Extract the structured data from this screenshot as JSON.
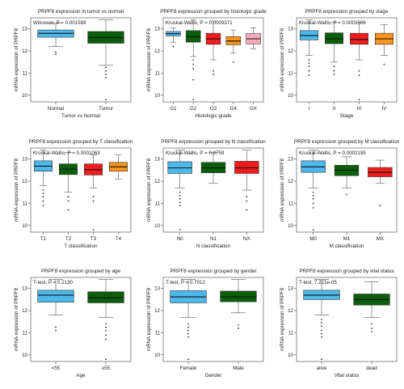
{
  "colors": {
    "light_blue": "#4db8ea",
    "dark_green": "#0b5e0b",
    "red": "#ee1c1c",
    "orange": "#f7941d",
    "pink": "#f6a9b8",
    "outlier": "#333333"
  },
  "chart_data": [
    {
      "type": "box",
      "title": "PRPF8 expression in tumor vs normal",
      "annotation": "Wilcoxon, P = 0.001599",
      "xlabel": "Tumor vs Normal",
      "ylabel": "mRNA expression of PRPF8",
      "ylim": [
        9.7,
        13.5
      ],
      "yticks": [
        10,
        11,
        12,
        13
      ],
      "categories": [
        {
          "label": "Normal",
          "color": "#4db8ea",
          "min": 12.2,
          "q1": 12.62,
          "median": 12.8,
          "q3": 12.95,
          "max": 13.25,
          "outliers": [
            11.85,
            11.95
          ]
        },
        {
          "label": "Tumor",
          "color": "#0b5e0b",
          "min": 11.35,
          "q1": 12.35,
          "median": 12.6,
          "q3": 12.88,
          "max": 13.4,
          "outliers": [
            11.25,
            11.1,
            10.95,
            10.8,
            9.8
          ]
        }
      ]
    },
    {
      "type": "box",
      "title": "PRPF8 expression grouped by histologic grade",
      "annotation": "Kruskal-Wallis, P = 0.0009371",
      "xlabel": "Histologic grade",
      "ylabel": "mRNA expression of PRPF8",
      "ylim": [
        9.7,
        13.5
      ],
      "yticks": [
        10,
        11,
        12,
        13
      ],
      "categories": [
        {
          "label": "G1",
          "color": "#4db8ea",
          "min": 12.4,
          "q1": 12.68,
          "median": 12.78,
          "q3": 12.88,
          "max": 13.05,
          "outliers": [
            12.2
          ]
        },
        {
          "label": "G2",
          "color": "#0b5e0b",
          "min": 11.75,
          "q1": 12.4,
          "median": 12.65,
          "q3": 12.92,
          "max": 13.4,
          "outliers": [
            11.6,
            11.4,
            11.2,
            10.7,
            9.8
          ]
        },
        {
          "label": "G3",
          "color": "#ee1c1c",
          "min": 11.6,
          "q1": 12.3,
          "median": 12.55,
          "q3": 12.8,
          "max": 13.35,
          "outliers": [
            11.1,
            10.95
          ]
        },
        {
          "label": "G4",
          "color": "#f7941d",
          "min": 11.9,
          "q1": 12.28,
          "median": 12.45,
          "q3": 12.65,
          "max": 12.95,
          "outliers": [
            11.5
          ]
        },
        {
          "label": "GX",
          "color": "#f6a9b8",
          "min": 12.1,
          "q1": 12.32,
          "median": 12.55,
          "q3": 12.78,
          "max": 13.05,
          "outliers": []
        }
      ]
    },
    {
      "type": "box",
      "title": "PRPF8 expression grouped by stage",
      "annotation": "Kruskal-Wallis, P = 0.0001506",
      "xlabel": "Stage",
      "ylabel": "mRNA expression of PRPF8",
      "ylim": [
        9.7,
        13.5
      ],
      "yticks": [
        10,
        11,
        12,
        13
      ],
      "categories": [
        {
          "label": "I",
          "color": "#4db8ea",
          "min": 11.8,
          "q1": 12.5,
          "median": 12.7,
          "q3": 12.92,
          "max": 13.4,
          "outliers": [
            11.6,
            11.45,
            11.3,
            11.1,
            10.9
          ]
        },
        {
          "label": "II",
          "color": "#0b5e0b",
          "min": 11.5,
          "q1": 12.33,
          "median": 12.55,
          "q3": 12.82,
          "max": 13.3,
          "outliers": [
            11.3,
            11.1,
            10.95
          ]
        },
        {
          "label": "III",
          "color": "#ee1c1c",
          "min": 11.6,
          "q1": 12.3,
          "median": 12.52,
          "q3": 12.8,
          "max": 13.3,
          "outliers": [
            11.1,
            10.9,
            9.8
          ]
        },
        {
          "label": "IV",
          "color": "#f7941d",
          "min": 11.8,
          "q1": 12.3,
          "median": 12.55,
          "q3": 12.8,
          "max": 13.2,
          "outliers": [
            11.4
          ]
        }
      ]
    },
    {
      "type": "box",
      "title": "PRPF8 expression grouped by T classification",
      "annotation": "Kruskal-Wallis, P = 0.0001063",
      "xlabel": "T classification",
      "ylabel": "mRNA expression of PRPF8",
      "ylim": [
        9.7,
        13.5
      ],
      "yticks": [
        10,
        11,
        12,
        13
      ],
      "categories": [
        {
          "label": "T1",
          "color": "#4db8ea",
          "min": 11.8,
          "q1": 12.45,
          "median": 12.68,
          "q3": 12.92,
          "max": 13.4,
          "outliers": [
            11.6,
            11.45,
            11.3,
            11.1,
            10.9
          ]
        },
        {
          "label": "T2",
          "color": "#0b5e0b",
          "min": 11.5,
          "q1": 12.3,
          "median": 12.55,
          "q3": 12.78,
          "max": 13.3,
          "outliers": [
            11.3,
            11.1,
            10.7
          ]
        },
        {
          "label": "T3",
          "color": "#ee1c1c",
          "min": 11.7,
          "q1": 12.28,
          "median": 12.52,
          "q3": 12.78,
          "max": 13.2,
          "outliers": [
            11.3,
            11.1,
            9.8
          ]
        },
        {
          "label": "T4",
          "color": "#f7941d",
          "min": 12.1,
          "q1": 12.45,
          "median": 12.65,
          "q3": 12.85,
          "max": 13.2,
          "outliers": []
        }
      ]
    },
    {
      "type": "box",
      "title": "PRPF8 expression grouped by N classification",
      "annotation": "Kruskal-Wallis, P = 0.9759",
      "xlabel": "N classification",
      "ylabel": "mRNA expression of PRPF8",
      "ylim": [
        9.7,
        13.5
      ],
      "yticks": [
        10,
        11,
        12,
        13
      ],
      "categories": [
        {
          "label": "N0",
          "color": "#4db8ea",
          "min": 11.7,
          "q1": 12.35,
          "median": 12.6,
          "q3": 12.88,
          "max": 13.4,
          "outliers": [
            11.5,
            11.35,
            11.2,
            11.05,
            10.9,
            9.8
          ]
        },
        {
          "label": "N1",
          "color": "#0b5e0b",
          "min": 11.9,
          "q1": 12.38,
          "median": 12.6,
          "q3": 12.85,
          "max": 13.3,
          "outliers": []
        },
        {
          "label": "NX",
          "color": "#ee1c1c",
          "min": 11.6,
          "q1": 12.35,
          "median": 12.6,
          "q3": 12.9,
          "max": 13.4,
          "outliers": [
            11.3,
            11.1,
            10.7
          ]
        }
      ]
    },
    {
      "type": "box",
      "title": "PRPF8 expression grouped by M classification",
      "annotation": "Kruskal-Wallis, P = 0.0002195",
      "xlabel": "M classification",
      "ylabel": "mRNA expression of PRPF8",
      "ylim": [
        9.7,
        13.5
      ],
      "yticks": [
        10,
        11,
        12,
        13
      ],
      "categories": [
        {
          "label": "M0",
          "color": "#4db8ea",
          "min": 11.7,
          "q1": 12.4,
          "median": 12.65,
          "q3": 12.92,
          "max": 13.4,
          "outliers": [
            11.5,
            11.35,
            11.2,
            11.0,
            10.8,
            9.8
          ]
        },
        {
          "label": "M1",
          "color": "#0b5e0b",
          "min": 11.7,
          "q1": 12.25,
          "median": 12.5,
          "q3": 12.72,
          "max": 13.1,
          "outliers": [
            11.4
          ]
        },
        {
          "label": "MX",
          "color": "#ee1c1c",
          "min": 11.9,
          "q1": 12.2,
          "median": 12.4,
          "q3": 12.62,
          "max": 12.95,
          "outliers": [
            10.9
          ]
        }
      ]
    },
    {
      "type": "box",
      "title": "PRPF8 expression grouped by age",
      "annotation": "T-test, P = 0.2130",
      "xlabel": "Age",
      "ylabel": "mRNA expression of PRPF8",
      "ylim": [
        9.7,
        13.5
      ],
      "yticks": [
        10,
        11,
        12,
        13
      ],
      "categories": [
        {
          "label": "<55",
          "color": "#4db8ea",
          "min": 11.8,
          "q1": 12.38,
          "median": 12.7,
          "q3": 12.92,
          "max": 13.4,
          "outliers": [
            11.25,
            11.1
          ]
        },
        {
          "label": "≥55",
          "color": "#0b5e0b",
          "min": 11.7,
          "q1": 12.35,
          "median": 12.58,
          "q3": 12.85,
          "max": 13.4,
          "outliers": [
            11.4,
            11.25,
            11.1,
            10.9,
            10.7,
            9.8
          ]
        }
      ]
    },
    {
      "type": "box",
      "title": "PRPF8 expression grouped by gender",
      "annotation": "T-test, P = 0.7012",
      "xlabel": "Gender",
      "ylabel": "mRNA expression of PRPF8",
      "ylim": [
        9.7,
        13.5
      ],
      "yticks": [
        10,
        11,
        12,
        13
      ],
      "categories": [
        {
          "label": "Female",
          "color": "#4db8ea",
          "min": 11.7,
          "q1": 12.35,
          "median": 12.62,
          "q3": 12.9,
          "max": 13.4,
          "outliers": [
            11.4,
            11.25,
            11.1,
            10.95,
            10.8,
            9.8
          ]
        },
        {
          "label": "Male",
          "color": "#0b5e0b",
          "min": 11.9,
          "q1": 12.4,
          "median": 12.62,
          "q3": 12.88,
          "max": 13.4,
          "outliers": [
            11.35,
            11.2
          ]
        }
      ]
    },
    {
      "type": "box",
      "title": "PRPF8 expression grouped by vital status",
      "annotation": "T-test, 7.221e-05",
      "xlabel": "Vital status",
      "ylabel": "mRNA expression of PRPF8",
      "ylim": [
        9.7,
        13.5
      ],
      "yticks": [
        10,
        11,
        12,
        13
      ],
      "categories": [
        {
          "label": "alive",
          "color": "#4db8ea",
          "min": 11.8,
          "q1": 12.5,
          "median": 12.7,
          "q3": 12.92,
          "max": 13.4,
          "outliers": [
            11.6,
            11.45,
            11.3,
            11.1,
            10.95,
            10.8,
            9.8
          ]
        },
        {
          "label": "dead",
          "color": "#0b5e0b",
          "min": 11.7,
          "q1": 12.25,
          "median": 12.5,
          "q3": 12.75,
          "max": 13.3,
          "outliers": [
            11.4,
            11.2,
            11.05
          ]
        }
      ]
    }
  ]
}
